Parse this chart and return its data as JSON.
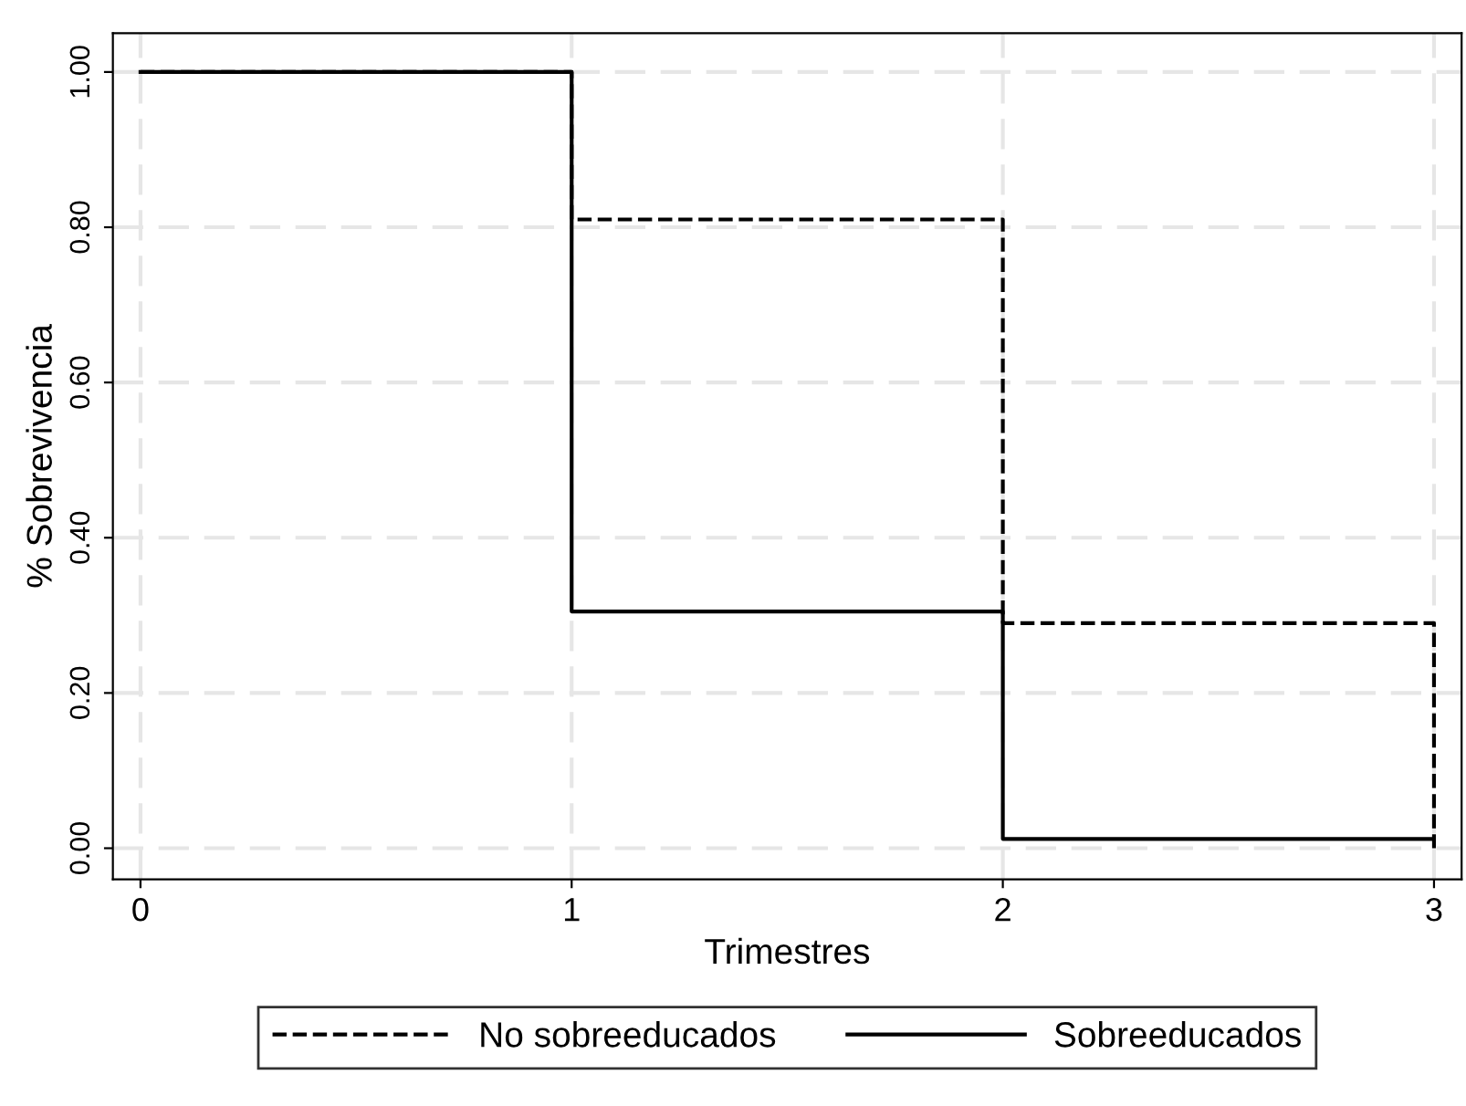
{
  "chart_data": {
    "type": "step",
    "xlabel": "Trimestres",
    "ylabel": "% Sobrevivencia",
    "x": [
      0,
      1,
      2,
      3
    ],
    "series": [
      {
        "name": "No sobreeducados",
        "color": "#000000",
        "line_style": "dashed",
        "values": [
          1.0,
          0.81,
          0.29,
          0.0
        ]
      },
      {
        "name": "Sobreeducados",
        "color": "#000000",
        "line_style": "solid",
        "values": [
          1.0,
          0.305,
          0.012,
          0.012
        ]
      }
    ],
    "xlim": [
      -0.064,
      3.064
    ],
    "xticks": [
      0,
      1,
      2,
      3
    ],
    "ylim": [
      -0.04,
      1.05
    ],
    "yticks": [
      {
        "value": 0,
        "label": "0.00"
      },
      {
        "value": 0.2,
        "label": "0.20"
      },
      {
        "value": 0.4,
        "label": "0.40"
      },
      {
        "value": 0.6,
        "label": "0.60"
      },
      {
        "value": 0.8,
        "label": "0.80"
      },
      {
        "value": 1.0,
        "label": "1.00"
      }
    ],
    "grid": true,
    "legend": "bottom",
    "marker": "none"
  }
}
